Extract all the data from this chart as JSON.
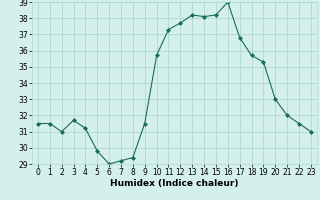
{
  "x": [
    0,
    1,
    2,
    3,
    4,
    5,
    6,
    7,
    8,
    9,
    10,
    11,
    12,
    13,
    14,
    15,
    16,
    17,
    18,
    19,
    20,
    21,
    22,
    23
  ],
  "y": [
    31.5,
    31.5,
    31.0,
    31.7,
    31.2,
    29.8,
    29.0,
    29.2,
    29.4,
    31.5,
    35.7,
    37.3,
    37.7,
    38.2,
    38.1,
    38.2,
    39.0,
    36.8,
    35.7,
    35.3,
    33.0,
    32.0,
    31.5,
    31.0
  ],
  "line_color": "#1a6b5a",
  "marker": "D",
  "marker_size": 2.0,
  "bg_color": "#d4f0ec",
  "grid_color": "#b0d8d0",
  "xlabel": "Humidex (Indice chaleur)",
  "ylabel": "",
  "ylim": [
    29,
    39
  ],
  "xlim": [
    -0.5,
    23.5
  ],
  "yticks": [
    29,
    30,
    31,
    32,
    33,
    34,
    35,
    36,
    37,
    38,
    39
  ],
  "xticks": [
    0,
    1,
    2,
    3,
    4,
    5,
    6,
    7,
    8,
    9,
    10,
    11,
    12,
    13,
    14,
    15,
    16,
    17,
    18,
    19,
    20,
    21,
    22,
    23
  ],
  "xlabel_fontsize": 6.5,
  "tick_fontsize": 5.5
}
